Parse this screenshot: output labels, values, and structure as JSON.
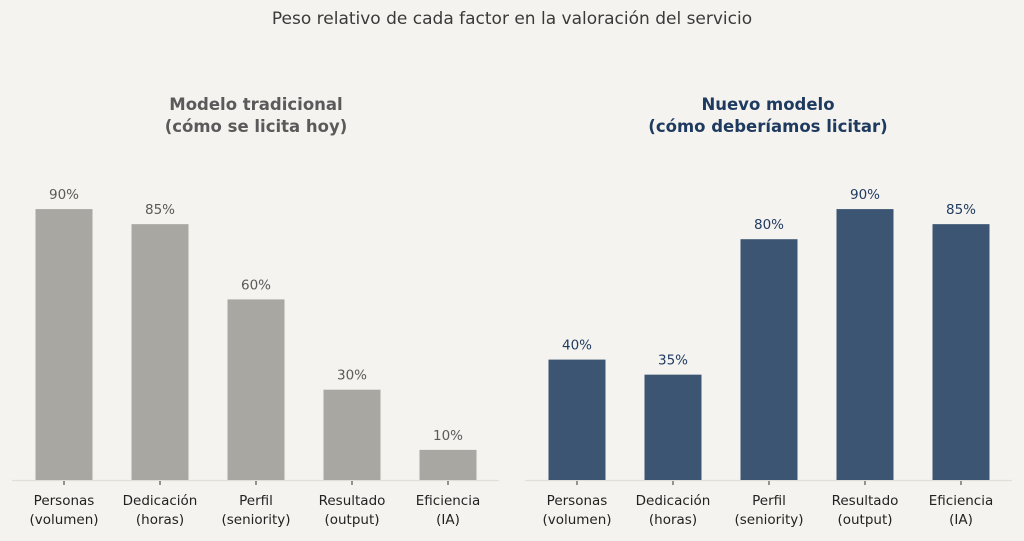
{
  "chart_data": {
    "type": "bar",
    "title": "Peso relativo de cada factor en la valoración del servicio",
    "ylim": [
      0,
      100
    ],
    "grid": false,
    "charts": [
      {
        "id": "left",
        "title_line1": "Modelo tradicional",
        "title_line2": "(cómo se licita hoy)",
        "bar_color": "#a8a7a1",
        "label_color": "#5a5a5a",
        "title_color": "#5a5a5a",
        "categories": [
          {
            "line1": "Personas",
            "line2": "(volumen)"
          },
          {
            "line1": "Dedicación",
            "line2": "(horas)"
          },
          {
            "line1": "Perfil",
            "line2": "(seniority)"
          },
          {
            "line1": "Resultado",
            "line2": "(output)"
          },
          {
            "line1": "Eficiencia",
            "line2": "(IA)"
          }
        ],
        "values": [
          90,
          85,
          60,
          30,
          10
        ],
        "value_labels": [
          "90%",
          "85%",
          "60%",
          "30%",
          "10%"
        ]
      },
      {
        "id": "right",
        "title_line1": "Nuevo modelo",
        "title_line2": "(cómo deberíamos licitar)",
        "bar_color": "#3b5573",
        "label_color": "#1e3a5f",
        "title_color": "#1e3a5f",
        "categories": [
          {
            "line1": "Personas",
            "line2": "(volumen)"
          },
          {
            "line1": "Dedicación",
            "line2": "(horas)"
          },
          {
            "line1": "Perfil",
            "line2": "(seniority)"
          },
          {
            "line1": "Resultado",
            "line2": "(output)"
          },
          {
            "line1": "Eficiencia",
            "line2": "(IA)"
          }
        ],
        "values": [
          40,
          35,
          80,
          90,
          85
        ],
        "value_labels": [
          "40%",
          "35%",
          "80%",
          "90%",
          "85%"
        ]
      }
    ]
  }
}
